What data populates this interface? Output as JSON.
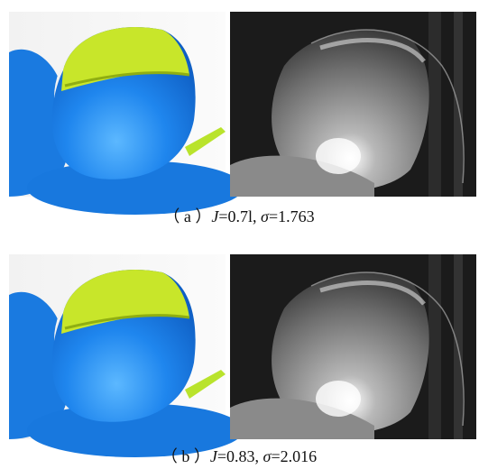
{
  "figures": [
    {
      "label": "（ a ）",
      "var1": "J",
      "expr1": "=0.7l, ",
      "var2": "σ",
      "expr2": "=1.763"
    },
    {
      "label": "（ b ）",
      "var1": "J",
      "expr1": "=0.83, ",
      "var2": "σ",
      "expr2": "=2.016"
    }
  ]
}
